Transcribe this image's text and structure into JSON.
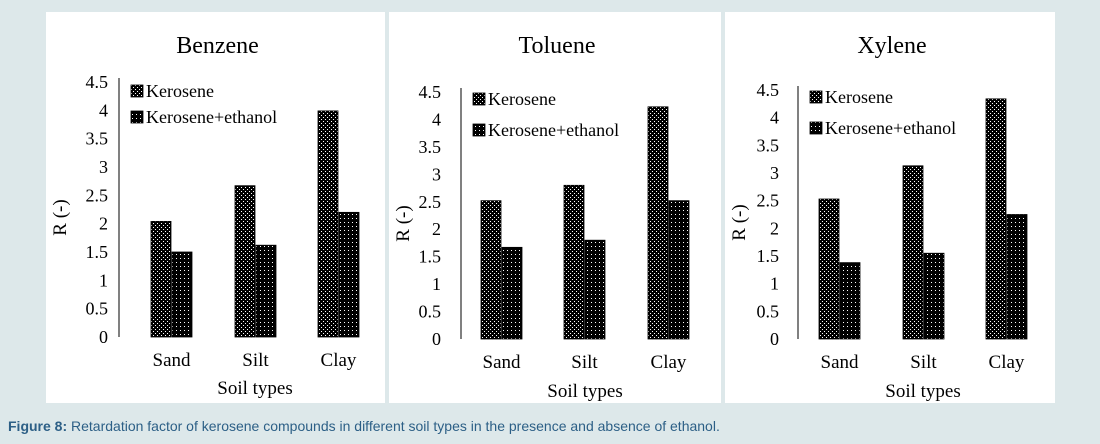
{
  "caption": {
    "label": "Figure 8:",
    "text": " Retardation factor of kerosene compounds in different soil types in the presence and absence of ethanol."
  },
  "chart_data": [
    {
      "type": "bar",
      "title": "Benzene",
      "xlabel": "Soil types",
      "ylabel": "R (-)",
      "categories": [
        "Sand",
        "Silt",
        "Clay"
      ],
      "ylim": [
        0,
        4.5
      ],
      "yticks": [
        "0",
        "0.5",
        "1",
        "1.5",
        "2",
        "2.5",
        "3",
        "3.5",
        "4",
        "4.5"
      ],
      "legend_position": "top-left",
      "series": [
        {
          "name": "Kerosene",
          "values": [
            2.04,
            2.67,
            3.99
          ]
        },
        {
          "name": "Kerosene+ethanol",
          "values": [
            1.5,
            1.62,
            2.2
          ]
        }
      ]
    },
    {
      "type": "bar",
      "title": "Toluene",
      "xlabel": "Soil types",
      "ylabel": "R (-)",
      "categories": [
        "Sand",
        "Silt",
        "Clay"
      ],
      "ylim": [
        0,
        4.5
      ],
      "yticks": [
        "0",
        "0.5",
        "1",
        "1.5",
        "2",
        "2.5",
        "3",
        "3.5",
        "4",
        "4.5"
      ],
      "legend_position": "top-left",
      "series": [
        {
          "name": "Kerosene",
          "values": [
            2.52,
            2.8,
            4.23
          ]
        },
        {
          "name": "Kerosene+ethanol",
          "values": [
            1.67,
            1.8,
            2.52
          ]
        }
      ]
    },
    {
      "type": "bar",
      "title": "Xylene",
      "xlabel": "Soil types",
      "ylabel": "R (-)",
      "categories": [
        "Sand",
        "Silt",
        "Clay"
      ],
      "ylim": [
        0,
        4.5
      ],
      "yticks": [
        "0",
        "0.5",
        "1",
        "1.5",
        "2",
        "2.5",
        "3",
        "3.5",
        "4",
        "4.5"
      ],
      "legend_position": "top-left",
      "series": [
        {
          "name": "Kerosene",
          "values": [
            2.53,
            3.13,
            4.34
          ]
        },
        {
          "name": "Kerosene+ethanol",
          "values": [
            1.38,
            1.55,
            2.25
          ]
        }
      ]
    }
  ]
}
